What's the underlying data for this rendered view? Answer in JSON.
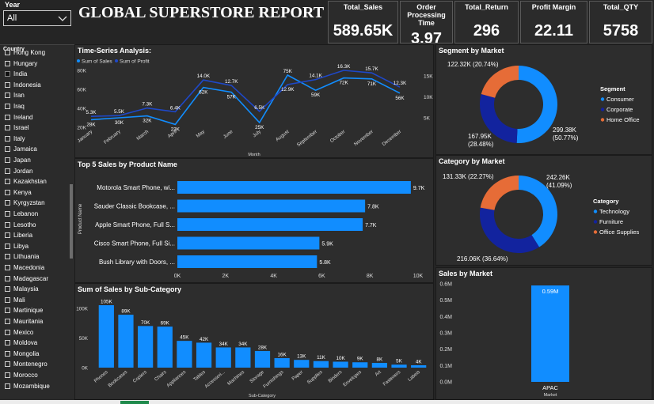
{
  "filter": {
    "label": "Year",
    "value": "All"
  },
  "slicer": {
    "label": "Country",
    "items": [
      {
        "name": "Hong Kong",
        "checked": false
      },
      {
        "name": "Hungary",
        "checked": false
      },
      {
        "name": "India",
        "checked": true
      },
      {
        "name": "Indonesia",
        "checked": false
      },
      {
        "name": "Iran",
        "checked": false
      },
      {
        "name": "Iraq",
        "checked": false
      },
      {
        "name": "Ireland",
        "checked": false
      },
      {
        "name": "Israel",
        "checked": false
      },
      {
        "name": "Italy",
        "checked": false
      },
      {
        "name": "Jamaica",
        "checked": false
      },
      {
        "name": "Japan",
        "checked": false
      },
      {
        "name": "Jordan",
        "checked": false
      },
      {
        "name": "Kazakhstan",
        "checked": false
      },
      {
        "name": "Kenya",
        "checked": false
      },
      {
        "name": "Kyrgyzstan",
        "checked": false
      },
      {
        "name": "Lebanon",
        "checked": false
      },
      {
        "name": "Lesotho",
        "checked": false
      },
      {
        "name": "Liberia",
        "checked": false
      },
      {
        "name": "Libya",
        "checked": false
      },
      {
        "name": "Lithuania",
        "checked": false
      },
      {
        "name": "Macedonia",
        "checked": false
      },
      {
        "name": "Madagascar",
        "checked": false
      },
      {
        "name": "Malaysia",
        "checked": false
      },
      {
        "name": "Mali",
        "checked": false
      },
      {
        "name": "Martinique",
        "checked": false
      },
      {
        "name": "Mauritania",
        "checked": false
      },
      {
        "name": "Mexico",
        "checked": false
      },
      {
        "name": "Moldova",
        "checked": false
      },
      {
        "name": "Mongolia",
        "checked": false
      },
      {
        "name": "Montenegro",
        "checked": false
      },
      {
        "name": "Morocco",
        "checked": false
      },
      {
        "name": "Mozambique",
        "checked": false
      }
    ]
  },
  "report_title": "GLOBAL SUPERSTORE REPORT",
  "kpis": [
    {
      "label": "Total_Sales",
      "value": "589.65K"
    },
    {
      "label": "Order Processing Time",
      "value": "3.97"
    },
    {
      "label": "Total_Return",
      "value": "296"
    },
    {
      "label": "Profit Margin",
      "value": "22.11"
    },
    {
      "label": "Total_QTY",
      "value": "5758"
    }
  ],
  "colors": {
    "sales": "#118DFF",
    "profit": "#1E48C8",
    "consumer": "#118DFF",
    "corporate": "#12239E",
    "home_office": "#E66C37"
  },
  "chart_data": [
    {
      "type": "line",
      "title": "Time-Series Analysis:",
      "xlabel": "Month",
      "categories": [
        "January",
        "February",
        "March",
        "April",
        "May",
        "June",
        "July",
        "August",
        "September",
        "October",
        "November",
        "December"
      ],
      "left_ticks": [
        "80K",
        "60K",
        "40K",
        "20K"
      ],
      "right_ticks": [
        "15K",
        "10K",
        "5K"
      ],
      "ylim": [
        20000,
        80000
      ],
      "y2lim": [
        2700,
        16300
      ],
      "series": [
        {
          "name": "Sum of Sales",
          "values": [
            28000,
            30000,
            32000,
            23000,
            62000,
            57000,
            25000,
            75000,
            59000,
            72000,
            71000,
            56000
          ],
          "labels": [
            "28K",
            "30K",
            "32K",
            "23K",
            "62K",
            "57K",
            "25K",
            "75K",
            "59K",
            "72K",
            "71K",
            "56K"
          ]
        },
        {
          "name": "Sum of Profit",
          "values": [
            5300,
            5500,
            7300,
            6400,
            14000,
            12700,
            6500,
            12900,
            14100,
            16300,
            15700,
            12300
          ],
          "labels": [
            "5.3K",
            "5.5K",
            "7.3K",
            "6.4K",
            "14.0K",
            "12.7K",
            "6.5K",
            "12.9K",
            "14.1K",
            "16.3K",
            "15.7K",
            "12.3K"
          ]
        }
      ]
    },
    {
      "type": "donut",
      "title": "Segment by Market",
      "legend_title": "Segment",
      "slices": [
        {
          "name": "Consumer",
          "value": 299380,
          "label": "299.38K",
          "pct": "(50.77%)"
        },
        {
          "name": "Corporate",
          "value": 167950,
          "label": "167.95K",
          "pct": "(28.48%)"
        },
        {
          "name": "Home Office",
          "value": 122320,
          "label": "122.32K (20.74%)",
          "pct": ""
        }
      ]
    },
    {
      "type": "donut",
      "title": "Category by Market",
      "legend_title": "Category",
      "slices": [
        {
          "name": "Technology",
          "value": 242260,
          "label": "242.26K",
          "pct": "(41.09%)"
        },
        {
          "name": "Furniture",
          "value": 216060,
          "label": "216.06K (36.64%)",
          "pct": ""
        },
        {
          "name": "Office Supplies",
          "value": 131330,
          "label": "131.33K (22.27%)",
          "pct": ""
        }
      ]
    },
    {
      "type": "bar",
      "orientation": "horizontal",
      "title": "Top 5 Sales by Product Name",
      "ylabel": "Product Name",
      "categories": [
        "Motorola Smart Phone, wi...",
        "Sauder Classic Bookcase, ...",
        "Apple Smart Phone, Full S...",
        "Cisco Smart Phone, Full Si...",
        "Bush Library with Doors, ..."
      ],
      "values": [
        9700,
        7800,
        7700,
        5900,
        5800
      ],
      "labels": [
        "9.7K",
        "7.8K",
        "7.7K",
        "5.9K",
        "5.8K"
      ],
      "xticks": [
        "0K",
        "2K",
        "4K",
        "6K",
        "8K",
        "10K"
      ],
      "xlim": [
        0,
        10000
      ]
    },
    {
      "type": "bar",
      "title": "Sum of Sales by Sub-Category",
      "xlabel": "Sub-Category",
      "categories": [
        "Phones",
        "Bookcases",
        "Copiers",
        "Chairs",
        "Appliances",
        "Tables",
        "Accessori...",
        "Machines",
        "Storage",
        "Furnishings",
        "Paper",
        "Supplies",
        "Binders",
        "Envelopes",
        "Art",
        "Fasteners",
        "Labels"
      ],
      "values": [
        105000,
        89000,
        70000,
        69000,
        45000,
        42000,
        34000,
        34000,
        28000,
        16000,
        13000,
        11000,
        10000,
        9000,
        8000,
        5000,
        4000
      ],
      "labels": [
        "105K",
        "89K",
        "70K",
        "69K",
        "45K",
        "42K",
        "34K",
        "34K",
        "28K",
        "16K",
        "13K",
        "11K",
        "10K",
        "9K",
        "8K",
        "5K",
        "4K"
      ],
      "yticks": [
        "100K",
        "50K",
        "0K"
      ],
      "ylim": [
        0,
        125000
      ]
    },
    {
      "type": "bar",
      "title": "Sales by Market",
      "xlabel": "Market",
      "categories": [
        "APAC"
      ],
      "values": [
        590000
      ],
      "labels": [
        "0.59M"
      ],
      "yticks": [
        "0.6M",
        "0.5M",
        "0.4M",
        "0.3M",
        "0.2M",
        "0.1M",
        "0.0M"
      ],
      "ylim": [
        0,
        600000
      ]
    }
  ]
}
